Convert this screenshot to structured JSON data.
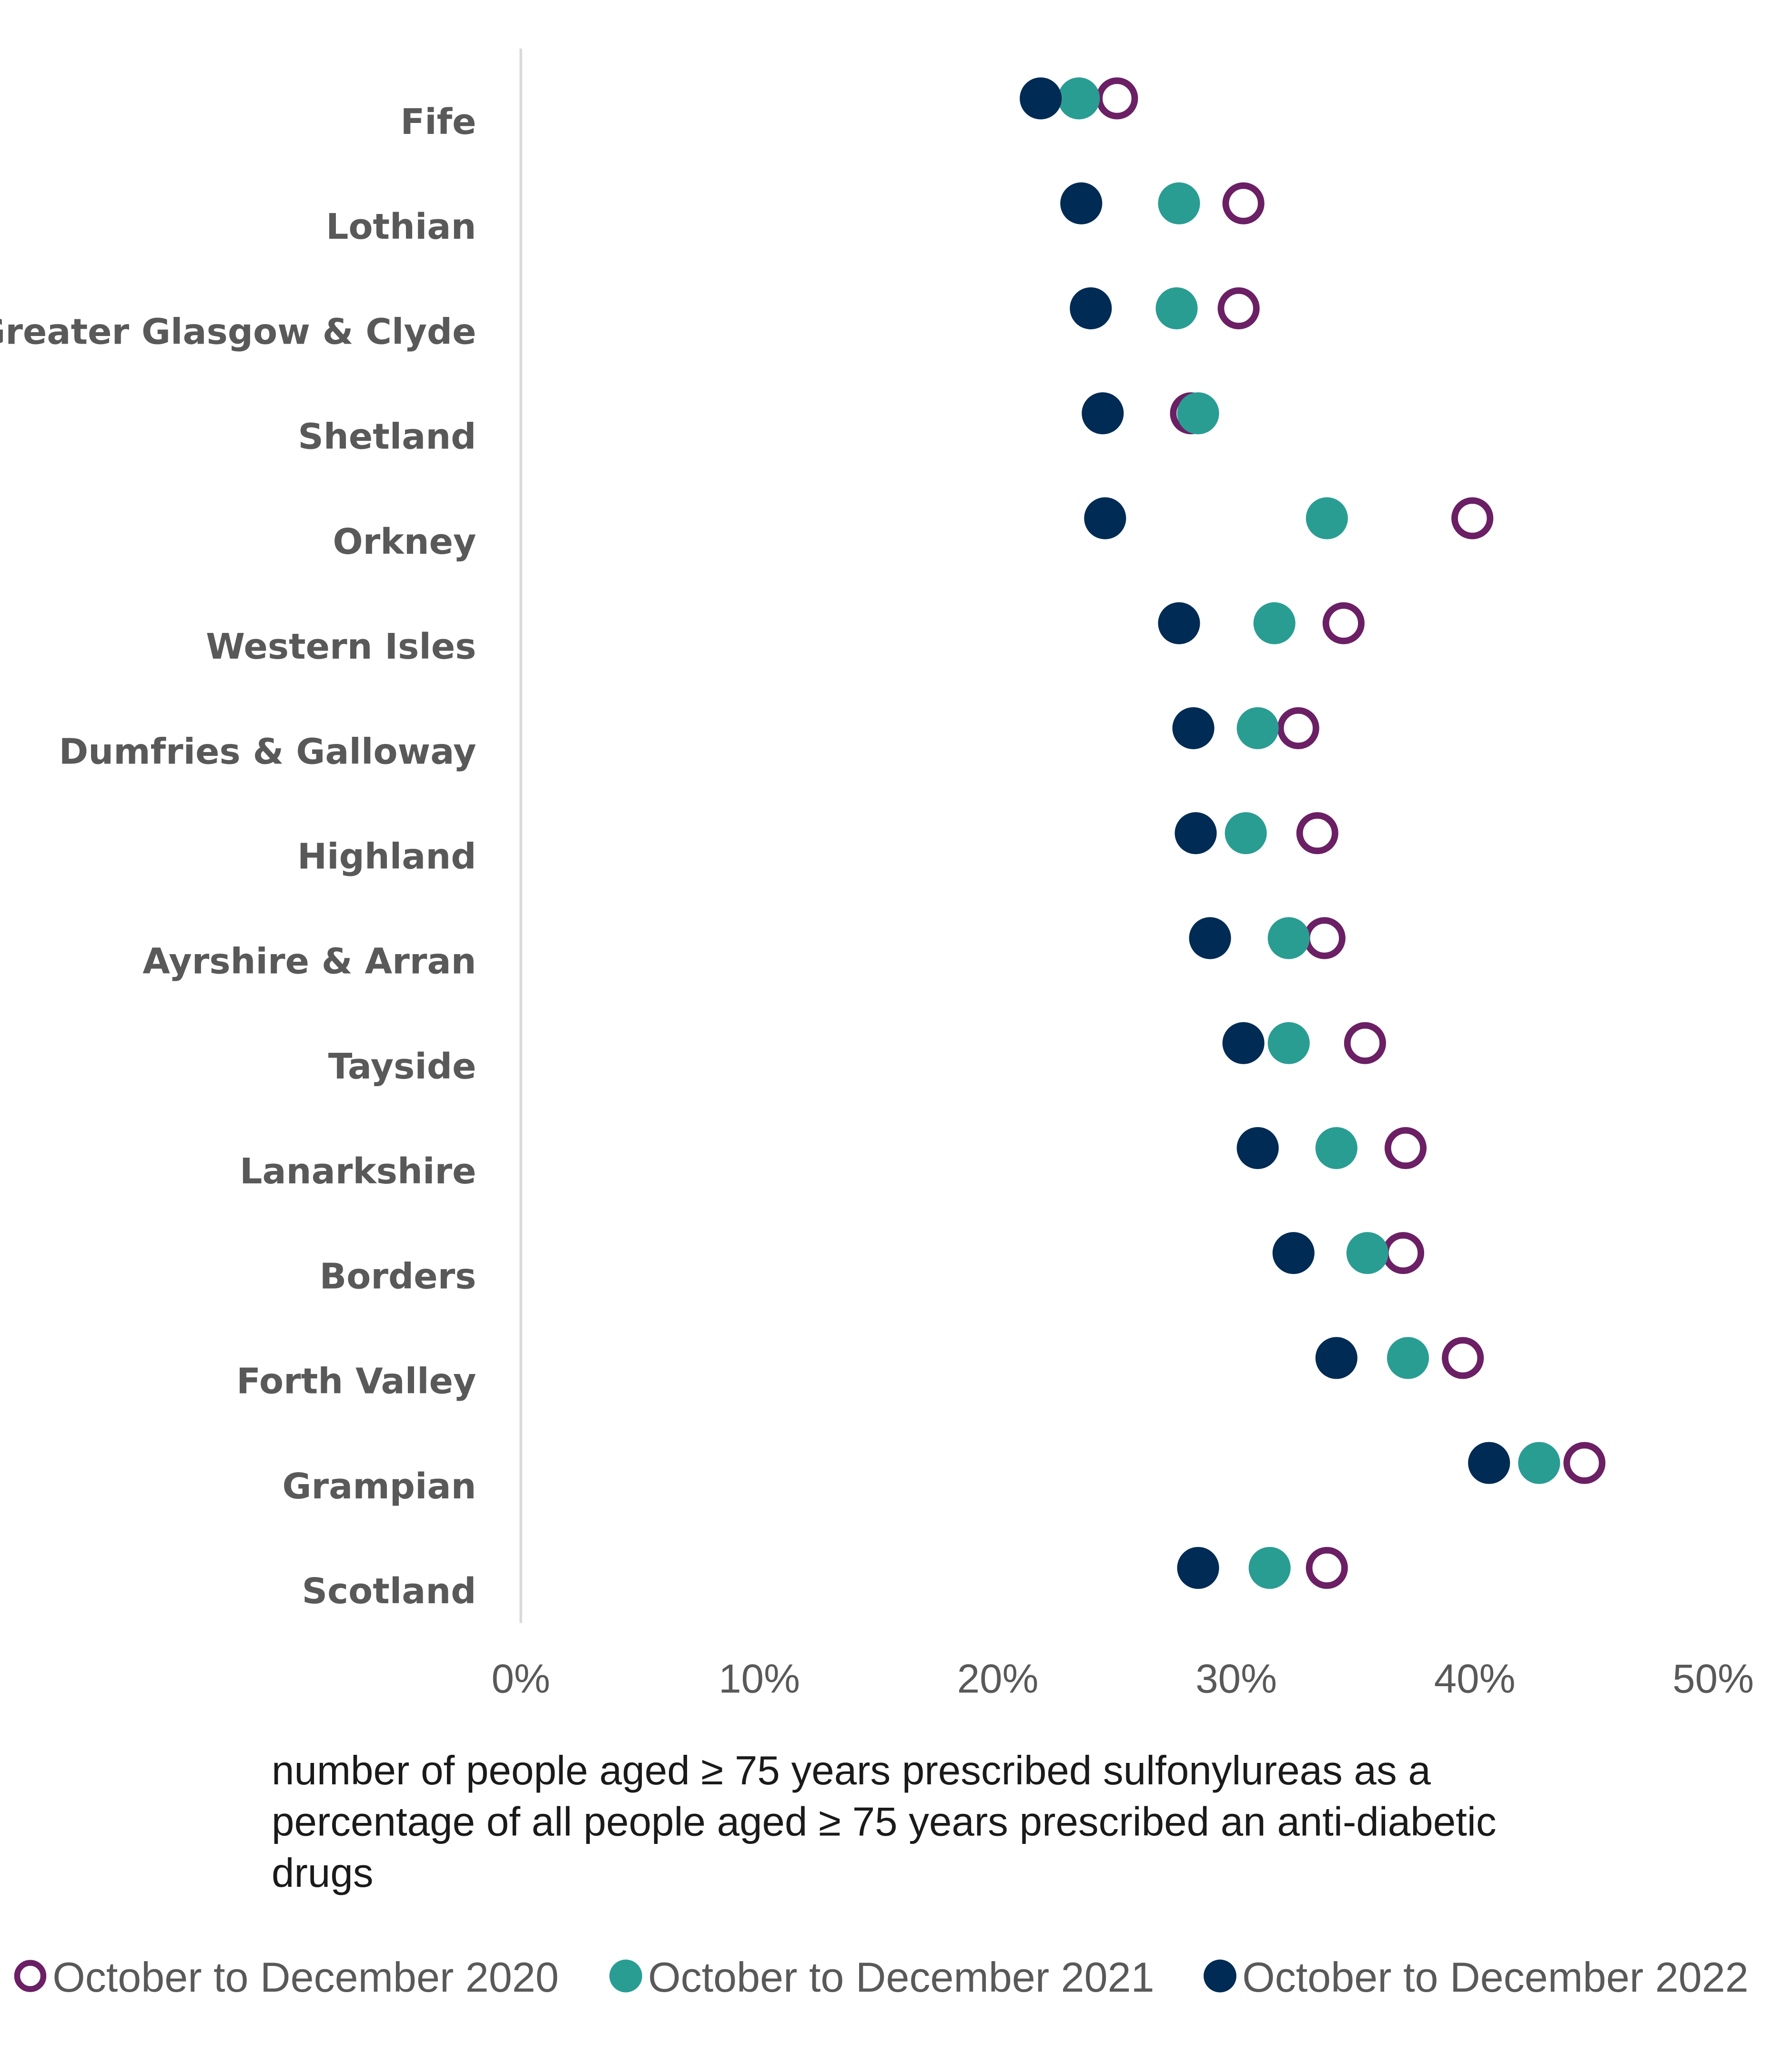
{
  "chart_data": {
    "type": "dot-plot",
    "orientation": "horizontal",
    "categories": [
      "Fife",
      "Lothian",
      "Greater Glasgow & Clyde",
      "Shetland",
      "Orkney",
      "Western Isles",
      "Dumfries & Galloway",
      "Highland",
      "Ayrshire & Arran",
      "Tayside",
      "Lanarkshire",
      "Borders",
      "Forth Valley",
      "Grampian",
      "Scotland"
    ],
    "xlabel_lines": [
      "number of people aged ≥ 75 years prescribed sulfonylureas as a",
      "percentage of all people aged ≥ 75 years prescribed an anti-diabetic",
      "drugs"
    ],
    "xlim": [
      0,
      50
    ],
    "x_ticks": [
      "0%",
      "10%",
      "20%",
      "30%",
      "40%",
      "50%"
    ],
    "grid": false,
    "legend_position": "bottom",
    "series": [
      {
        "name": "October to December 2020",
        "marker": "open-circle",
        "color": "#6B1F64",
        "values": [
          25.0,
          30.3,
          30.1,
          28.1,
          39.9,
          34.5,
          32.6,
          33.4,
          33.7,
          35.4,
          37.1,
          37.0,
          39.5,
          44.6,
          33.8
        ]
      },
      {
        "name": "October to December 2021",
        "marker": "filled-circle",
        "color": "#2A9D93",
        "values": [
          23.4,
          27.6,
          27.5,
          28.4,
          33.8,
          31.6,
          30.9,
          30.4,
          32.2,
          32.2,
          34.2,
          35.5,
          37.2,
          42.7,
          31.4
        ]
      },
      {
        "name": "October to December 2022",
        "marker": "filled-circle",
        "color": "#002B54",
        "values": [
          21.8,
          23.5,
          23.9,
          24.4,
          24.5,
          27.6,
          28.2,
          28.3,
          28.9,
          30.3,
          30.9,
          32.4,
          34.2,
          40.6,
          28.4
        ]
      }
    ]
  }
}
